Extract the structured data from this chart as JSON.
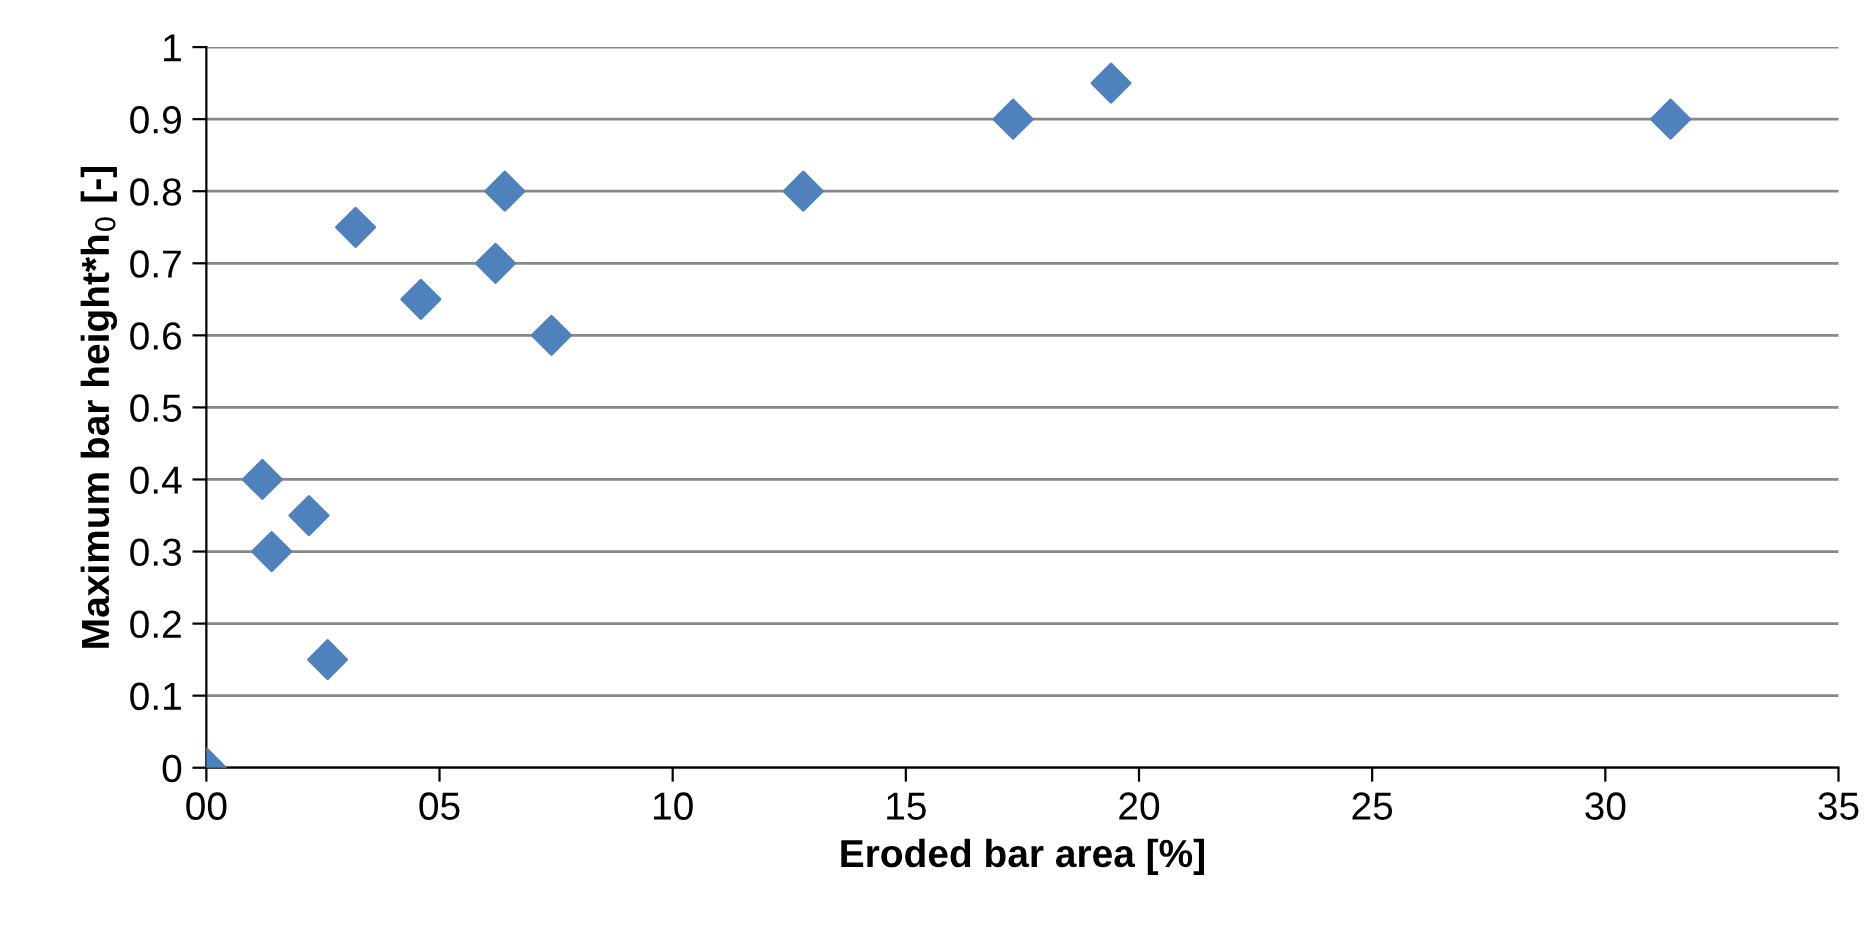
{
  "chart_data": {
    "type": "scatter",
    "xlabel": "Eroded bar area [%]",
    "ylabel": "Maximum bar height*h$_{0}$ [-]",
    "x": [
      0,
      1.2,
      1.4,
      2.2,
      2.6,
      3.2,
      4.6,
      6.2,
      6.4,
      7.4,
      12.8,
      17.3,
      19.4,
      31.4
    ],
    "series": [
      {
        "color": "#4f81bd",
        "values": [
          0,
          0.4,
          0.3,
          0.35,
          0.15,
          0.75,
          0.65,
          0.7,
          0.8,
          0.6,
          0.8,
          0.9,
          0.95,
          0.9
        ]
      }
    ],
    "xlim": [
      0,
      35
    ],
    "xticks": [
      {
        "value": 0,
        "label": "00"
      },
      {
        "value": 5,
        "label": "05"
      },
      10,
      15,
      20,
      25,
      30,
      35
    ],
    "ylim": [
      0,
      1
    ],
    "yticks": [
      0,
      0.1,
      0.2,
      0.3,
      0.4,
      0.5,
      0.6,
      0.7,
      0.8,
      0.9,
      1
    ],
    "grid": "y",
    "marker": "diamond",
    "legend": false
  }
}
